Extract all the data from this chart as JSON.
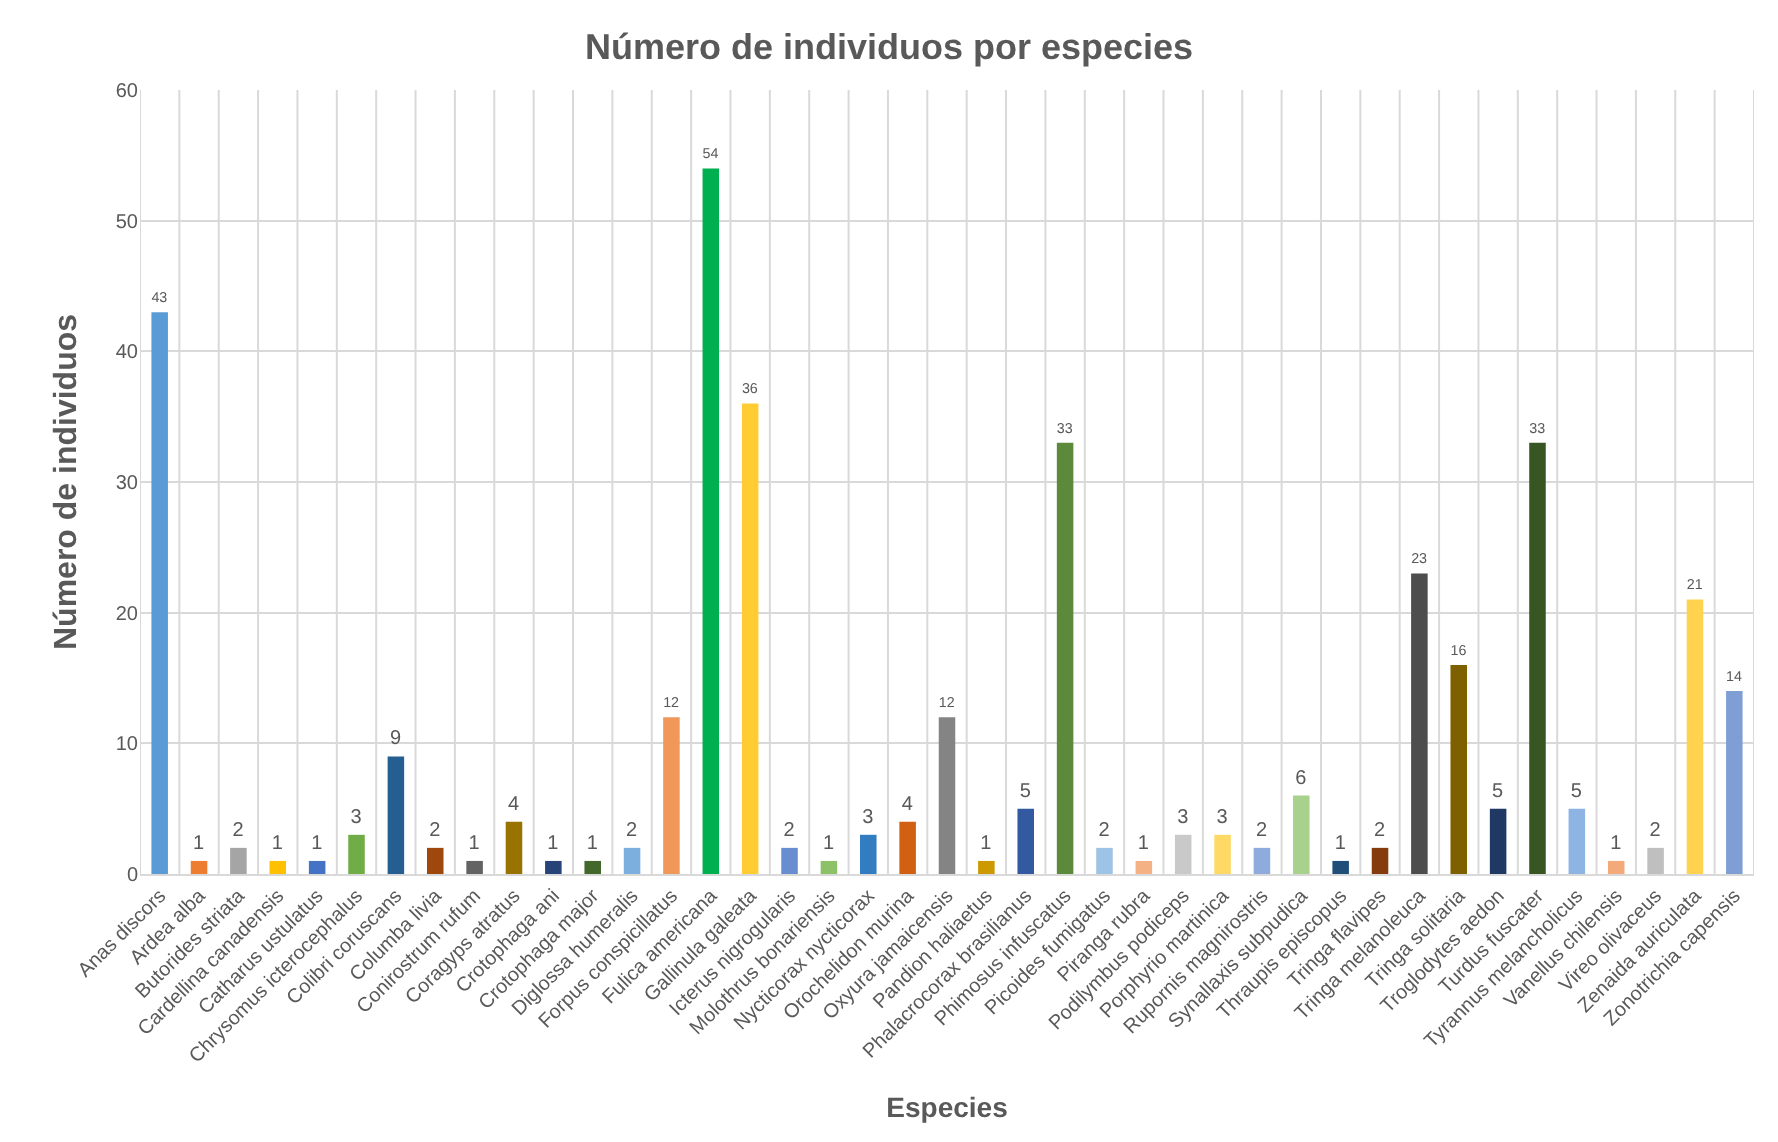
{
  "chart_data": {
    "type": "bar",
    "title": "Número de individuos por especies",
    "xlabel": "Especies",
    "ylabel": "Número de individuos",
    "categories": [
      "Anas discors",
      "Ardea alba",
      "Butorides striata",
      "Cardellina canadensis",
      "Catharus ustulatus",
      "Chrysomus icterocephalus",
      "Colibri coruscans",
      "Columba livia",
      "Conirostrum rufum",
      "Coragyps atratus",
      "Crotophaga ani",
      "Crotophaga major",
      "Diglossa humeralis",
      "Forpus conspicillatus",
      "Fulica americana",
      "Gallinula galeata",
      "Icterus nigrogularis",
      "Molothrus bonariensis",
      "Nycticorax nycticorax",
      "Orochelidon murina",
      "Oxyura jamaicensis",
      "Pandion haliaetus",
      "Phalacrocorax brasilianus",
      "Phimosus infuscatus",
      "Picoides fumigatus",
      "Piranga rubra",
      "Podilymbus podiceps",
      "Porphyrio martinica",
      "Rupornis magnirostris",
      "Synallaxis subpudica",
      "Thraupis episcopus",
      "Tringa flavipes",
      "Tringa melanoleuca",
      "Tringa solitaria",
      "Troglodytes aedon",
      "Turdus fuscater",
      "Tyrannus melancholicus",
      "Vanellus chilensis",
      "Vireo olivaceus",
      "Zenaida auriculata",
      "Zonotrichia capensis"
    ],
    "values": [
      43,
      1,
      2,
      1,
      1,
      3,
      9,
      2,
      1,
      4,
      1,
      1,
      2,
      12,
      54,
      36,
      2,
      1,
      3,
      4,
      12,
      1,
      5,
      33,
      2,
      1,
      3,
      3,
      2,
      6,
      1,
      2,
      23,
      16,
      5,
      33,
      5,
      1,
      2,
      21,
      14
    ],
    "colors": [
      "#5b9bd5",
      "#ed7d31",
      "#a5a5a5",
      "#ffc000",
      "#4472c4",
      "#70ad47",
      "#255e91",
      "#9e480e",
      "#636363",
      "#997300",
      "#264478",
      "#43682b",
      "#7cafdd",
      "#f1975a",
      "#00b050",
      "#ffcd33",
      "#698ed0",
      "#8cc168",
      "#327dc2",
      "#d26012",
      "#848484",
      "#cc9a00",
      "#335aa1",
      "#5a8a3a",
      "#9dc3e6",
      "#f4b183",
      "#c9c9c9",
      "#ffd966",
      "#8faadc",
      "#a9d18e",
      "#1f4e79",
      "#843c0c",
      "#4d4d4d",
      "#7f6000",
      "#203864",
      "#375623",
      "#8db4e2",
      "#f4a97a",
      "#bfbfbf",
      "#ffd34f",
      "#7f9fd4"
    ],
    "ylim": [
      0,
      60
    ],
    "yticks": [
      0,
      10,
      20,
      30,
      40,
      50,
      60
    ],
    "grid": true,
    "data_labels": true,
    "legend": false
  }
}
